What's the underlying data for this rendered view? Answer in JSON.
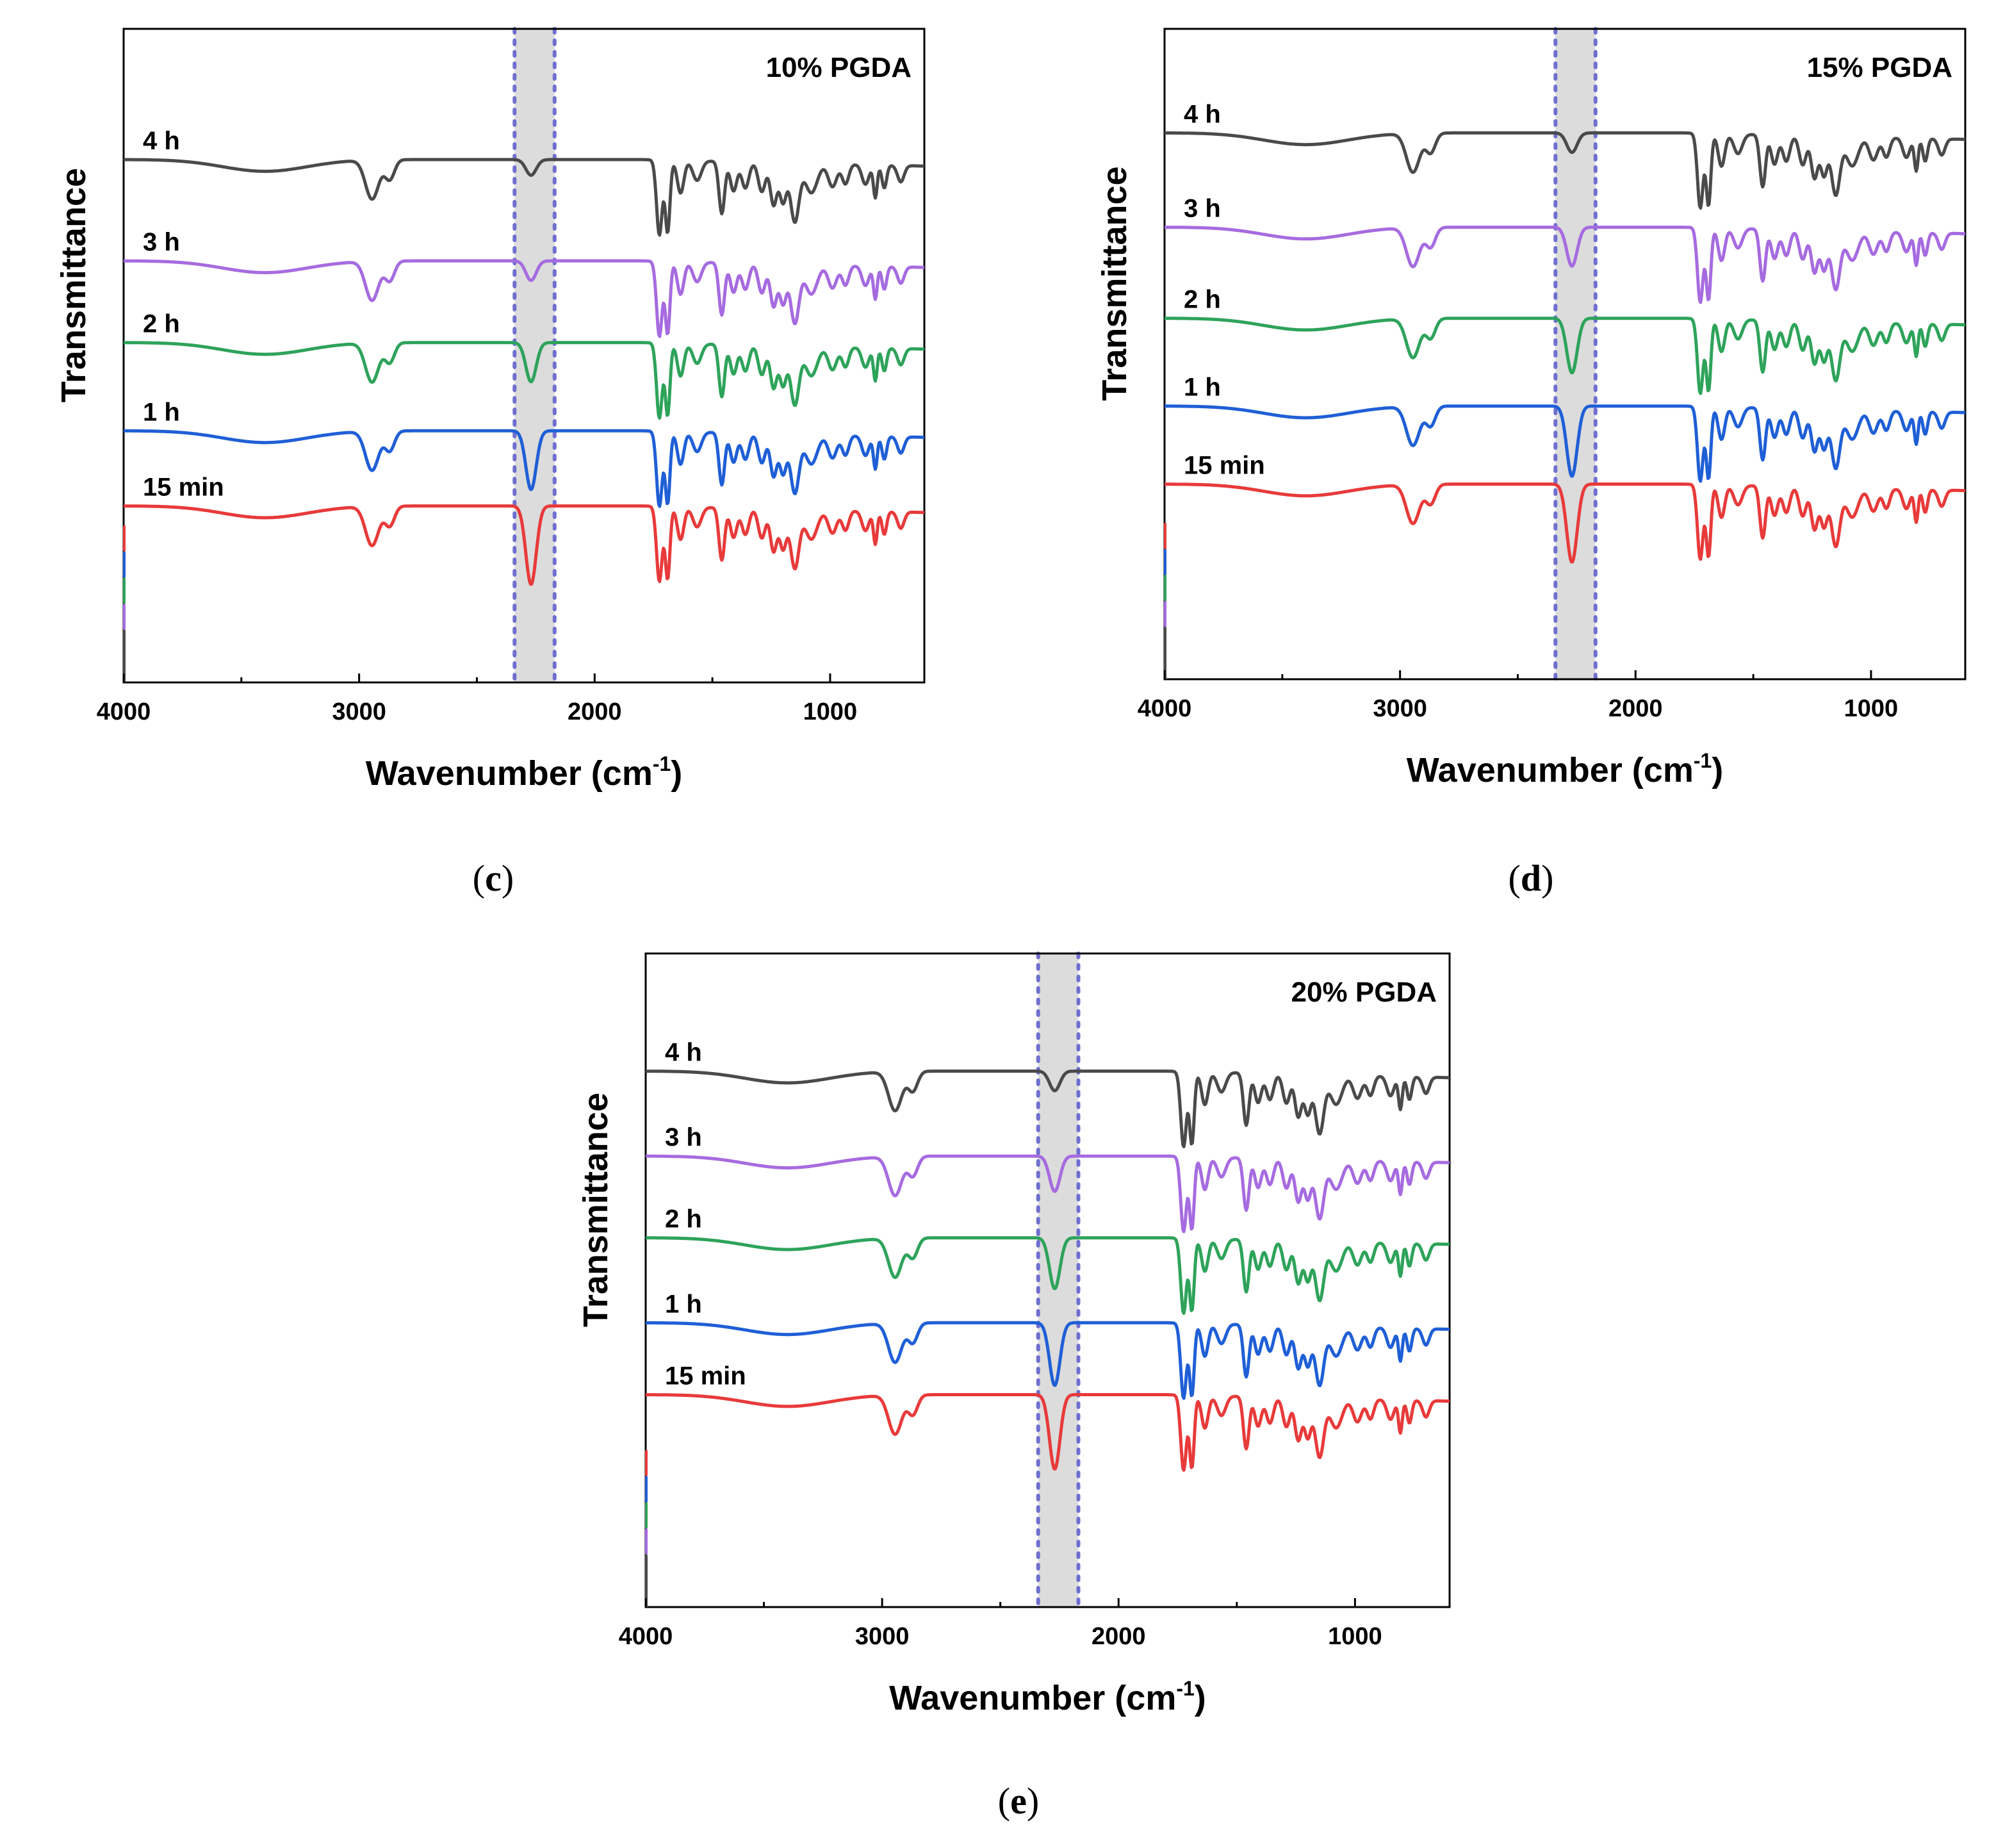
{
  "chart_data": [
    {
      "type": "line",
      "panel_id": "c",
      "title": "10% PGDA",
      "xlabel": "Wavenumber (cm",
      "xlabel_unit_sup": "-1",
      "xlabel_close": ")",
      "ylabel": "Transmittance",
      "xlim": [
        4000,
        600
      ],
      "xticks": [
        4000,
        3000,
        2000,
        1000
      ],
      "highlight_band": [
        2340,
        2170
      ],
      "series": [
        {
          "name": "4 h",
          "color": "#4a4a4a",
          "offset": 0.8,
          "nco": 0.2
        },
        {
          "name": "3 h",
          "color": "#a66be0",
          "offset": 0.645,
          "nco": 0.25
        },
        {
          "name": "2 h",
          "color": "#2ea35a",
          "offset": 0.52,
          "nco": 0.5
        },
        {
          "name": "1 h",
          "color": "#1f5fd6",
          "offset": 0.385,
          "nco": 0.75
        },
        {
          "name": "15 min",
          "color": "#e83a3a",
          "offset": 0.27,
          "nco": 1.0
        }
      ],
      "caption_open": "(",
      "caption_letter": "c",
      "caption_close": ")"
    },
    {
      "type": "line",
      "panel_id": "d",
      "title": "15% PGDA",
      "xlabel": "Wavenumber (cm",
      "xlabel_unit_sup": "-1",
      "xlabel_close": ")",
      "ylabel": "Transmittance",
      "xlim": [
        4000,
        600
      ],
      "xticks": [
        4000,
        3000,
        2000,
        1000
      ],
      "highlight_band": [
        2340,
        2170
      ],
      "series": [
        {
          "name": "4 h",
          "color": "#4a4a4a",
          "offset": 0.84,
          "nco": 0.25
        },
        {
          "name": "3 h",
          "color": "#a66be0",
          "offset": 0.695,
          "nco": 0.5
        },
        {
          "name": "2 h",
          "color": "#2ea35a",
          "offset": 0.555,
          "nco": 0.7
        },
        {
          "name": "1 h",
          "color": "#1f5fd6",
          "offset": 0.42,
          "nco": 0.9
        },
        {
          "name": "15 min",
          "color": "#e83a3a",
          "offset": 0.3,
          "nco": 1.0
        }
      ],
      "caption_open": "(",
      "caption_letter": "d",
      "caption_close": ")"
    },
    {
      "type": "line",
      "panel_id": "e",
      "title": "20% PGDA",
      "xlabel": "Wavenumber (cm",
      "xlabel_unit_sup": "-1",
      "xlabel_close": ")",
      "ylabel": "Transmittance",
      "xlim": [
        4000,
        600
      ],
      "xticks": [
        4000,
        3000,
        2000,
        1000
      ],
      "highlight_band": [
        2340,
        2170
      ],
      "series": [
        {
          "name": "4 h",
          "color": "#4a4a4a",
          "offset": 0.82,
          "nco": 0.25
        },
        {
          "name": "3 h",
          "color": "#a66be0",
          "offset": 0.69,
          "nco": 0.45
        },
        {
          "name": "2 h",
          "color": "#2ea35a",
          "offset": 0.565,
          "nco": 0.65
        },
        {
          "name": "1 h",
          "color": "#1f5fd6",
          "offset": 0.435,
          "nco": 0.8
        },
        {
          "name": "15 min",
          "color": "#e83a3a",
          "offset": 0.325,
          "nco": 0.95
        }
      ],
      "caption_open": "(",
      "caption_letter": "e",
      "caption_close": ")"
    }
  ],
  "spectrum_bands": [
    {
      "center": 3400,
      "width": 180,
      "depth": 0.018
    },
    {
      "center": 2945,
      "width": 28,
      "depth": 0.06
    },
    {
      "center": 2870,
      "width": 20,
      "depth": 0.03
    },
    {
      "center": 1725,
      "width": 12,
      "depth": 0.115
    },
    {
      "center": 1690,
      "width": 10,
      "depth": 0.11
    },
    {
      "center": 1635,
      "width": 14,
      "depth": 0.05
    },
    {
      "center": 1565,
      "width": 18,
      "depth": 0.03
    },
    {
      "center": 1460,
      "width": 12,
      "depth": 0.08
    },
    {
      "center": 1410,
      "width": 14,
      "depth": 0.045
    },
    {
      "center": 1360,
      "width": 15,
      "depth": 0.04
    },
    {
      "center": 1290,
      "width": 15,
      "depth": 0.045
    },
    {
      "center": 1240,
      "width": 14,
      "depth": 0.065
    },
    {
      "center": 1200,
      "width": 14,
      "depth": 0.06
    },
    {
      "center": 1150,
      "width": 18,
      "depth": 0.09
    },
    {
      "center": 1080,
      "width": 25,
      "depth": 0.045
    },
    {
      "center": 990,
      "width": 18,
      "depth": 0.035
    },
    {
      "center": 935,
      "width": 14,
      "depth": 0.03
    },
    {
      "center": 850,
      "width": 15,
      "depth": 0.03
    },
    {
      "center": 808,
      "width": 8,
      "depth": 0.05
    },
    {
      "center": 770,
      "width": 10,
      "depth": 0.035
    },
    {
      "center": 700,
      "width": 14,
      "depth": 0.025
    }
  ],
  "nco_band": {
    "center": 2270,
    "width": 22,
    "depth": 0.12
  }
}
